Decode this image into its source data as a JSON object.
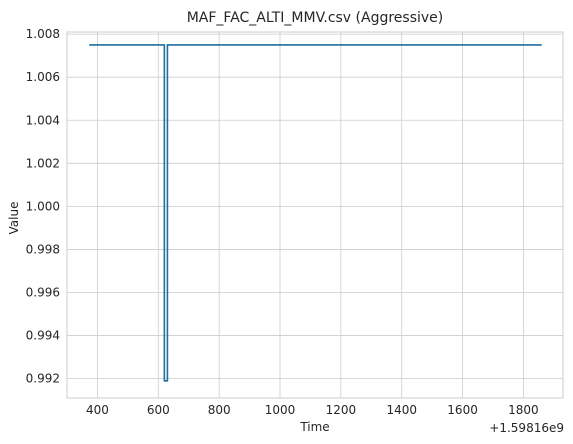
{
  "chart_data": {
    "type": "line",
    "title": "MAF_FAC_ALTI_MMV.csv (Aggressive)",
    "xlabel": "Time",
    "ylabel": "Value",
    "x_offset_label": "+1.59816e9",
    "xlim": [
      300,
      1930
    ],
    "ylim": [
      0.9911,
      1.0081
    ],
    "xticks": [
      400,
      600,
      800,
      1000,
      1200,
      1400,
      1600,
      1800
    ],
    "yticks": [
      0.992,
      0.994,
      0.996,
      0.998,
      1.0,
      1.002,
      1.004,
      1.006,
      1.008
    ],
    "ytick_labels": [
      "0.992",
      "0.994",
      "0.996",
      "0.998",
      "1.000",
      "1.002",
      "1.004",
      "1.006",
      "1.008"
    ],
    "grid": true,
    "series": [
      {
        "color": "#1f6e9c",
        "x": [
          373,
          620,
          620,
          630,
          630,
          1860
        ],
        "y": [
          1.0075,
          1.0075,
          0.9919,
          0.9919,
          1.0075,
          1.0075
        ]
      }
    ]
  }
}
